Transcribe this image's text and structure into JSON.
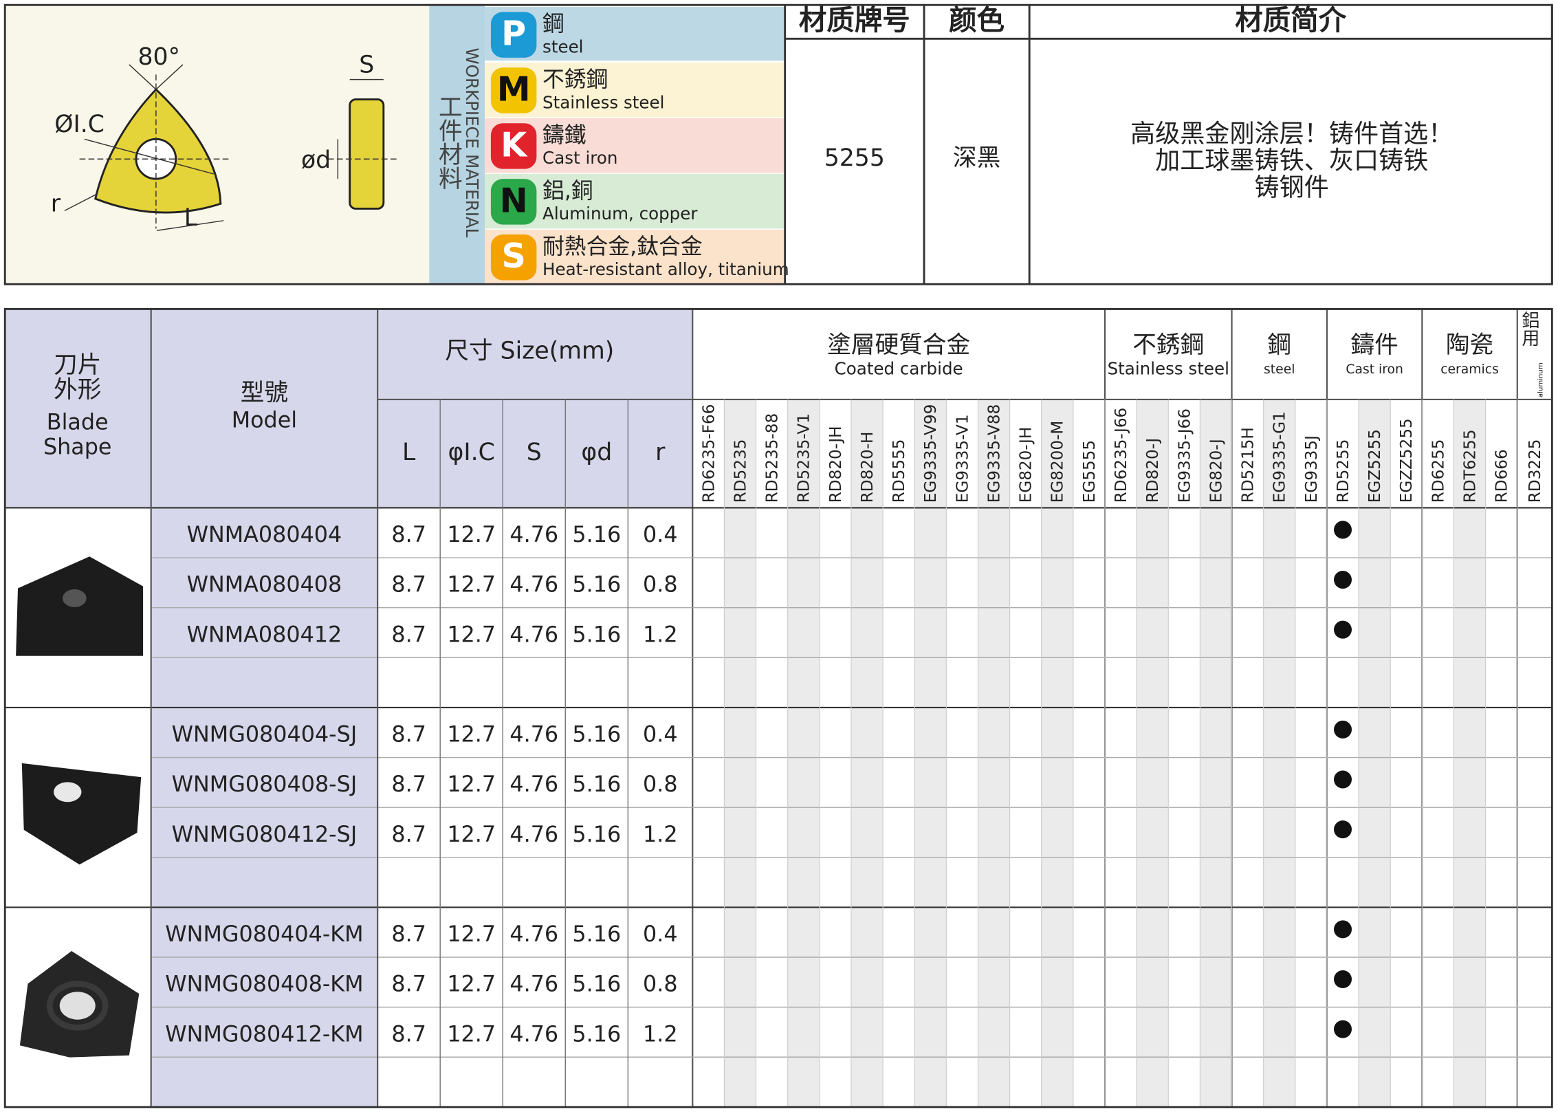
{
  "diagram": {
    "angle": "80°",
    "ic": "ØI.C",
    "s": "S",
    "d": "ød",
    "r": "r",
    "l": "L"
  },
  "workpiece": {
    "label_en": "WORKPIECE MATERIAL",
    "label_cn": "工件材料",
    "materials": [
      {
        "letter": "P",
        "name_cn": "鋼",
        "name_en": "steel",
        "color": "#1b9ad6",
        "background": "#bcd8e5"
      },
      {
        "letter": "M",
        "name_cn": "不銹鋼",
        "name_en": "Stainless steel",
        "color": "#f2c300",
        "background": "#fbf3d3"
      },
      {
        "letter": "K",
        "name_cn": "鑄鐵",
        "name_en": "Cast iron",
        "color": "#e1232c",
        "background": "#f8dcd5"
      },
      {
        "letter": "N",
        "name_cn": "鋁,銅",
        "name_en": "Aluminum, copper",
        "color": "#2aa84a",
        "background": "#d7ebd5"
      },
      {
        "letter": "S",
        "name_cn": "耐熱合金,鈦合金",
        "name_en": "Heat-resistant alloy, titanium",
        "color": "#f5a100",
        "background": "#fbe2cb"
      }
    ]
  },
  "grade_info": {
    "headers": [
      "材质牌号",
      "颜色",
      "材质简介"
    ],
    "grade": "5255",
    "color": "深黑",
    "description": [
      "高级黑金刚涂层！铸件首选！",
      "加工球墨铸铁、灰口铸铁",
      "铸钢件"
    ]
  },
  "table": {
    "headers": {
      "shape": [
        "刀片",
        "外形",
        "Blade",
        "Shape"
      ],
      "model": [
        "型號",
        "Model"
      ],
      "size": "尺寸 Size(mm)",
      "dimensions": [
        "L",
        "φI.C",
        "S",
        "φd",
        "r"
      ]
    },
    "groups": [
      {
        "name_cn": "塗層硬質合金",
        "name_en": "Coated carbide",
        "grades": [
          "RD6235-F66",
          "RD5235",
          "RD5235-88",
          "RD5235-V1",
          "RD820-JH",
          "RD820-H",
          "RD5555",
          "EG9335-V99",
          "EG9335-V1",
          "EG9335-V88",
          "EG820-JH",
          "EG8200-M",
          "EG5555"
        ]
      },
      {
        "name_cn": "不銹鋼",
        "name_en": "Stainless steel",
        "grades": [
          "RD6235-J66",
          "RD820-J",
          "EG9335-J66",
          "EG820-J"
        ]
      },
      {
        "name_cn": "鋼",
        "name_en": "steel",
        "grades": [
          "RD5215H",
          "EG9335-G1",
          "EG9335J"
        ]
      },
      {
        "name_cn": "鑄件",
        "name_en": "Cast iron",
        "grades": [
          "RD5255",
          "EGZ5255",
          "EGZZ5255"
        ]
      },
      {
        "name_cn": "陶瓷",
        "name_en": "ceramics",
        "grades": [
          "RD6255",
          "RDT6255",
          "RD666"
        ]
      },
      {
        "name_cn": "鋁用",
        "name_en": "aluminum",
        "grades": [
          "RD3225"
        ]
      }
    ],
    "blocks": [
      {
        "rows": [
          {
            "model": "WNMA080404",
            "values": [
              "8.7",
              "12.7",
              "4.76",
              "5.16",
              "0.4"
            ],
            "grades": [
              "RD5255"
            ]
          },
          {
            "model": "WNMA080408",
            "values": [
              "8.7",
              "12.7",
              "4.76",
              "5.16",
              "0.8"
            ],
            "grades": [
              "RD5255"
            ]
          },
          {
            "model": "WNMA080412",
            "values": [
              "8.7",
              "12.7",
              "4.76",
              "5.16",
              "1.2"
            ],
            "grades": [
              "RD5255"
            ]
          }
        ]
      },
      {
        "rows": [
          {
            "model": "WNMG080404-SJ",
            "values": [
              "8.7",
              "12.7",
              "4.76",
              "5.16",
              "0.4"
            ],
            "grades": [
              "RD5255"
            ]
          },
          {
            "model": "WNMG080408-SJ",
            "values": [
              "8.7",
              "12.7",
              "4.76",
              "5.16",
              "0.8"
            ],
            "grades": [
              "RD5255"
            ]
          },
          {
            "model": "WNMG080412-SJ",
            "values": [
              "8.7",
              "12.7",
              "4.76",
              "5.16",
              "1.2"
            ],
            "grades": [
              "RD5255"
            ]
          }
        ]
      },
      {
        "rows": [
          {
            "model": "WNMG080404-KM",
            "values": [
              "8.7",
              "12.7",
              "4.76",
              "5.16",
              "0.4"
            ],
            "grades": [
              "RD5255"
            ]
          },
          {
            "model": "WNMG080408-KM",
            "values": [
              "8.7",
              "12.7",
              "4.76",
              "5.16",
              "0.8"
            ],
            "grades": [
              "RD5255"
            ]
          },
          {
            "model": "WNMG080412-KM",
            "values": [
              "8.7",
              "12.7",
              "4.76",
              "5.16",
              "1.2"
            ],
            "grades": [
              "RD5255"
            ]
          }
        ]
      }
    ]
  }
}
